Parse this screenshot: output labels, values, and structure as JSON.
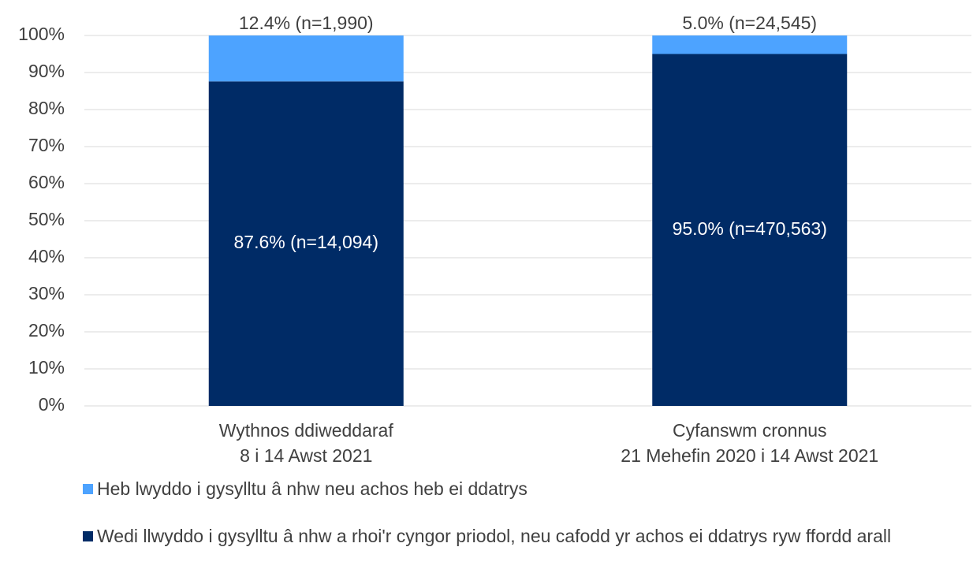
{
  "chart_data": {
    "type": "stacked_bar",
    "categories": [
      [
        "Wythnos ddiweddaraf",
        "8 i 14 Awst 2021"
      ],
      [
        "Cyfanswm cronnus",
        "21 Mehefin 2020 i 14 Awst 2021"
      ]
    ],
    "series": [
      {
        "name": "Wedi llwyddo i gysylltu â nhw a rhoi'r cyngor priodol, neu cafodd yr achos ei ddatrys ryw ffordd arall",
        "color": "#002b66",
        "values": [
          87.6,
          95.0
        ],
        "value_labels": [
          "87.6% (n=14,094)",
          "95.0% (n=470,563)"
        ]
      },
      {
        "name": "Heb lwyddo i gysylltu â nhw neu achos heb ei ddatrys",
        "color": "#4da3ff",
        "values": [
          12.4,
          5.0
        ],
        "value_labels": [
          "12.4% (n=1,990)",
          "5.0% (n=24,545)"
        ]
      }
    ],
    "ylim": [
      0,
      100
    ],
    "yticks": [
      {
        "value": 0,
        "label": "0%"
      },
      {
        "value": 10,
        "label": "10%"
      },
      {
        "value": 20,
        "label": "20%"
      },
      {
        "value": 30,
        "label": "30%"
      },
      {
        "value": 40,
        "label": "40%"
      },
      {
        "value": 50,
        "label": "50%"
      },
      {
        "value": 60,
        "label": "60%"
      },
      {
        "value": 70,
        "label": "70%"
      },
      {
        "value": 80,
        "label": "80%"
      },
      {
        "value": 90,
        "label": "90%"
      },
      {
        "value": 100,
        "label": "100%"
      }
    ],
    "grid": true
  }
}
